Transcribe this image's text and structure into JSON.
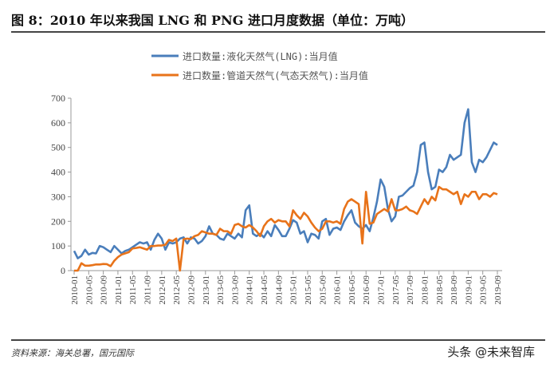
{
  "title": "图 8：2010 年以来我国 LNG 和 PNG 进口月度数据（单位：万吨）",
  "source": "资料来源：海关总署，国元国际",
  "watermark": "头条 @未来智库",
  "chart_data": {
    "type": "line",
    "title": "图 8：2010 年以来我国 LNG 和 PNG 进口月度数据（单位：万吨）",
    "x_start": "2010-01",
    "x_end": "2019-09",
    "x_tick_labels": [
      "2010-01",
      "2010-05",
      "2010-09",
      "2011-01",
      "2011-05",
      "2011-09",
      "2012-01",
      "2012-05",
      "2012-09",
      "2013-01",
      "2013-05",
      "2013-09",
      "2014-01",
      "2014-05",
      "2014-09",
      "2015-01",
      "2015-05",
      "2015-09",
      "2016-01",
      "2016-05",
      "2016-09",
      "2017-01",
      "2017-05",
      "2017-09",
      "2018-01",
      "2018-05",
      "2018-09",
      "2019-01",
      "2019-05",
      "2019-09"
    ],
    "ylim": [
      0,
      700
    ],
    "y_ticks": [
      0,
      100,
      200,
      300,
      400,
      500,
      600,
      700
    ],
    "grid": false,
    "legend": "top-center",
    "series": [
      {
        "name": "进口数量:液化天然气(LNG):当月值",
        "color": "#4a7ebb",
        "values": [
          80,
          50,
          60,
          85,
          65,
          72,
          70,
          100,
          95,
          85,
          75,
          100,
          85,
          70,
          80,
          85,
          95,
          105,
          115,
          110,
          115,
          85,
          125,
          150,
          130,
          85,
          115,
          110,
          115,
          130,
          135,
          110,
          135,
          130,
          110,
          120,
          140,
          180,
          150,
          145,
          130,
          125,
          150,
          140,
          130,
          150,
          135,
          245,
          265,
          150,
          140,
          150,
          135,
          160,
          140,
          185,
          165,
          140,
          140,
          170,
          205,
          195,
          150,
          160,
          115,
          150,
          145,
          130,
          200,
          210,
          145,
          170,
          175,
          165,
          200,
          225,
          245,
          195,
          180,
          170,
          185,
          160,
          215,
          280,
          370,
          340,
          250,
          200,
          220,
          300,
          305,
          320,
          335,
          345,
          400,
          510,
          520,
          400,
          330,
          340,
          410,
          400,
          420,
          470,
          450,
          460,
          470,
          600,
          655,
          440,
          400,
          450,
          440,
          460,
          490,
          520,
          510
        ]
      },
      {
        "name": "进口数量:管道天然气(气态天然气):当月值",
        "color": "#e8731a",
        "values": [
          0,
          0,
          30,
          20,
          20,
          22,
          25,
          25,
          27,
          26,
          18,
          40,
          55,
          65,
          70,
          75,
          90,
          92,
          95,
          90,
          85,
          100,
          100,
          102,
          102,
          105,
          125,
          120,
          130,
          0,
          128,
          130,
          128,
          140,
          145,
          160,
          155,
          150,
          150,
          145,
          170,
          160,
          160,
          150,
          185,
          190,
          180,
          175,
          185,
          175,
          160,
          140,
          180,
          200,
          210,
          195,
          205,
          200,
          200,
          180,
          245,
          225,
          210,
          235,
          220,
          195,
          175,
          160,
          170,
          200,
          200,
          195,
          200,
          190,
          250,
          280,
          290,
          280,
          270,
          110,
          320,
          190,
          195,
          230,
          240,
          250,
          240,
          290,
          245,
          245,
          250,
          260,
          245,
          240,
          230,
          260,
          290,
          270,
          300,
          285,
          340,
          330,
          330,
          320,
          310,
          320,
          270,
          310,
          300,
          320,
          320,
          290,
          310,
          310,
          300,
          315,
          310
        ]
      }
    ]
  }
}
